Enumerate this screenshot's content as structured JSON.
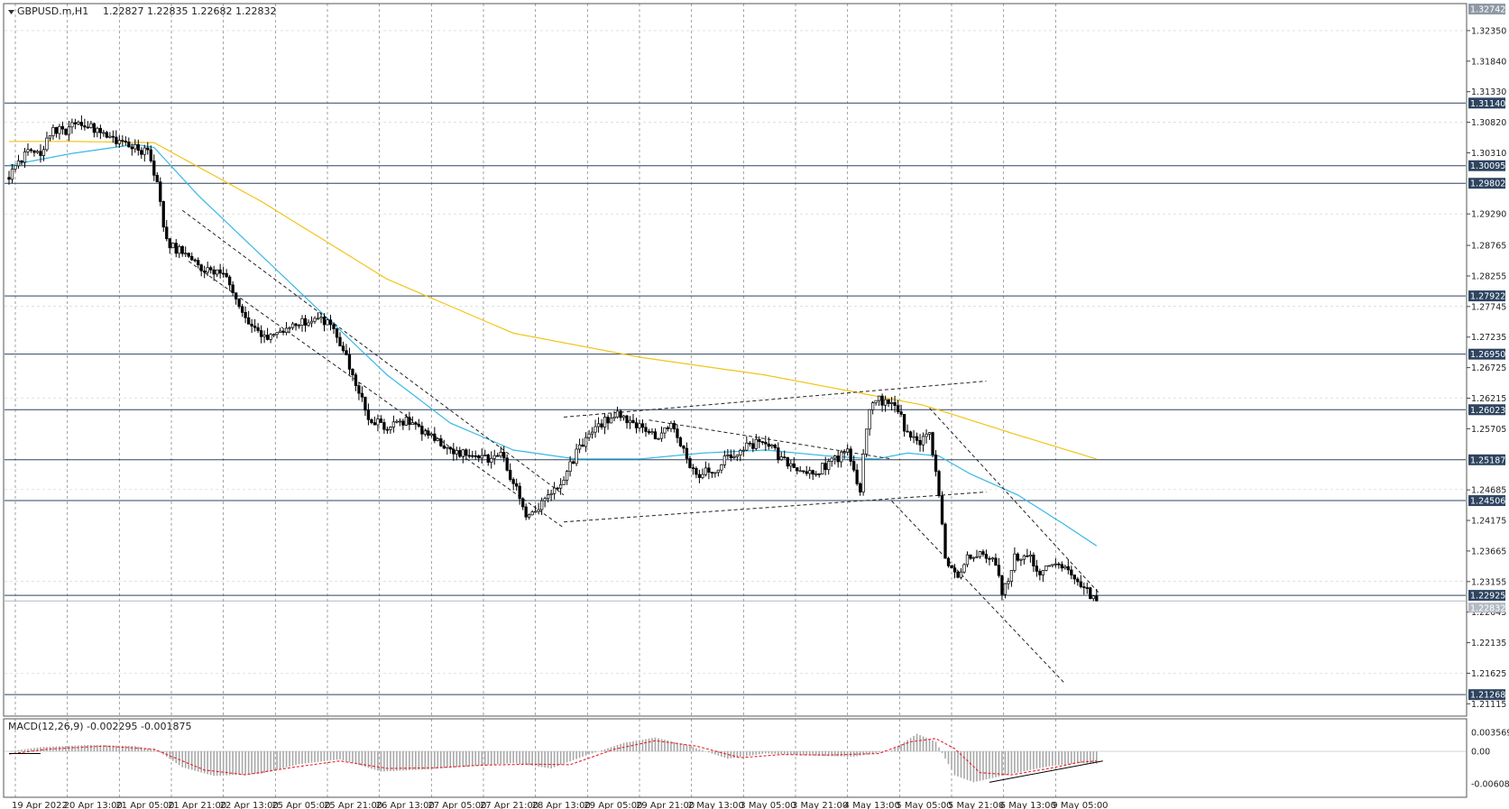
{
  "header": {
    "symbol": "GBPUSD.m,H1",
    "ohlc": "1.22827 1.22835 1.22682 1.22832"
  },
  "macd": {
    "label": "MACD(12,26,9) -0.002295 -0.001875",
    "axis_labels": [
      "0.003569",
      "0.00",
      "-0.00608"
    ]
  },
  "colors": {
    "bull": "#ffffff",
    "bear": "#000000",
    "ma_fast": "#36b8e6",
    "ma_slow": "#f2c418",
    "hline": "#2e4460",
    "grid": "#8a8a8a",
    "macd_hist": "#a8a8a8",
    "macd_signal": "#e8202a"
  },
  "chart_data": {
    "type": "candlestick",
    "symbol": "GBPUSD.m",
    "timeframe": "H1",
    "ylim": [
      1.2103,
      1.3277
    ],
    "y_ticks": [
      "1.32350",
      "1.31840",
      "1.31330",
      "1.30820",
      "1.30310",
      "1.29290",
      "1.28765",
      "1.28255",
      "1.27745",
      "1.27235",
      "1.26725",
      "1.26215",
      "1.25705",
      "1.24685",
      "1.24175",
      "1.23665",
      "1.23155",
      "1.22645",
      "1.22135",
      "1.21625",
      "1.21115"
    ],
    "top_label": "1.32742",
    "x_ticks": [
      "19 Apr 2022",
      "20 Apr 13:00",
      "21 Apr 05:00",
      "21 Apr 21:00",
      "22 Apr 13:00",
      "25 Apr 05:00",
      "25 Apr 21:00",
      "26 Apr 13:00",
      "27 Apr 05:00",
      "27 Apr 21:00",
      "28 Apr 13:00",
      "29 Apr 05:00",
      "29 Apr 21:00",
      "2 May 13:00",
      "3 May 05:00",
      "3 May 21:00",
      "4 May 13:00",
      "5 May 05:00",
      "5 May 21:00",
      "6 May 13:00",
      "9 May 05:00"
    ],
    "horizontal_levels": [
      "1.31140",
      "1.30095",
      "1.29802",
      "1.27922",
      "1.26950",
      "1.26023",
      "1.25187",
      "1.24506",
      "1.22925",
      "1.21268"
    ],
    "current_price": "1.22832",
    "price_path": [
      [
        0,
        1.299
      ],
      [
        6,
        1.304
      ],
      [
        10,
        1.303
      ],
      [
        14,
        1.307
      ],
      [
        18,
        1.3065
      ],
      [
        22,
        1.3085
      ],
      [
        26,
        1.3075
      ],
      [
        30,
        1.306
      ],
      [
        36,
        1.3045
      ],
      [
        40,
        1.304
      ],
      [
        44,
        1.303
      ],
      [
        47,
        1.298
      ],
      [
        50,
        1.288
      ],
      [
        56,
        1.286
      ],
      [
        60,
        1.284
      ],
      [
        66,
        1.2835
      ],
      [
        70,
        1.281
      ],
      [
        74,
        1.276
      ],
      [
        80,
        1.272
      ],
      [
        86,
        1.2735
      ],
      [
        92,
        1.2745
      ],
      [
        98,
        1.276
      ],
      [
        102,
        1.274
      ],
      [
        106,
        1.27
      ],
      [
        110,
        1.265
      ],
      [
        114,
        1.259
      ],
      [
        120,
        1.257
      ],
      [
        126,
        1.2585
      ],
      [
        132,
        1.2565
      ],
      [
        138,
        1.254
      ],
      [
        144,
        1.253
      ],
      [
        150,
        1.252
      ],
      [
        156,
        1.2525
      ],
      [
        160,
        1.248
      ],
      [
        164,
        1.243
      ],
      [
        168,
        1.244
      ],
      [
        172,
        1.246
      ],
      [
        176,
        1.249
      ],
      [
        180,
        1.253
      ],
      [
        186,
        1.257
      ],
      [
        192,
        1.2595
      ],
      [
        196,
        1.2585
      ],
      [
        200,
        1.2575
      ],
      [
        206,
        1.2555
      ],
      [
        210,
        1.2575
      ],
      [
        214,
        1.253
      ],
      [
        218,
        1.2495
      ],
      [
        224,
        1.2505
      ],
      [
        230,
        1.253
      ],
      [
        236,
        1.2545
      ],
      [
        240,
        1.255
      ],
      [
        244,
        1.2525
      ],
      [
        250,
        1.2505
      ],
      [
        254,
        1.2495
      ],
      [
        258,
        1.2505
      ],
      [
        262,
        1.252
      ],
      [
        266,
        1.253
      ],
      [
        270,
        1.247
      ],
      [
        272,
        1.2575
      ],
      [
        274,
        1.262
      ],
      [
        278,
        1.2615
      ],
      [
        282,
        1.2605
      ],
      [
        284,
        1.257
      ],
      [
        288,
        1.2545
      ],
      [
        292,
        1.256
      ],
      [
        295,
        1.246
      ],
      [
        297,
        1.235
      ],
      [
        301,
        1.233
      ],
      [
        305,
        1.236
      ],
      [
        309,
        1.2365
      ],
      [
        313,
        1.235
      ],
      [
        315,
        1.229
      ],
      [
        319,
        1.2355
      ],
      [
        323,
        1.236
      ],
      [
        327,
        1.233
      ],
      [
        331,
        1.2345
      ],
      [
        335,
        1.234
      ],
      [
        339,
        1.232
      ],
      [
        343,
        1.2295
      ],
      [
        345,
        1.2283
      ]
    ],
    "moving_averages": [
      {
        "points": [
          [
            0,
            1.301
          ],
          [
            20,
            1.303
          ],
          [
            40,
            1.3045
          ],
          [
            46,
            1.304
          ],
          [
            60,
            1.296
          ],
          [
            80,
            1.286
          ],
          [
            100,
            1.276
          ],
          [
            120,
            1.266
          ],
          [
            140,
            1.258
          ],
          [
            160,
            1.2535
          ],
          [
            180,
            1.252
          ],
          [
            200,
            1.252
          ],
          [
            220,
            1.253
          ],
          [
            240,
            1.2535
          ],
          [
            260,
            1.2525
          ],
          [
            275,
            1.252
          ],
          [
            285,
            1.253
          ],
          [
            295,
            1.2525
          ],
          [
            305,
            1.2495
          ],
          [
            320,
            1.246
          ],
          [
            335,
            1.241
          ],
          [
            345,
            1.2375
          ]
        ]
      },
      {
        "points": [
          [
            0,
            1.305
          ],
          [
            20,
            1.305
          ],
          [
            46,
            1.3048
          ],
          [
            80,
            1.295
          ],
          [
            120,
            1.282
          ],
          [
            160,
            1.273
          ],
          [
            200,
            1.269
          ],
          [
            240,
            1.266
          ],
          [
            270,
            1.263
          ],
          [
            290,
            1.261
          ],
          [
            320,
            1.256
          ],
          [
            345,
            1.252
          ]
        ]
      }
    ],
    "trendlines": [
      {
        "from": [
          55,
          1.2935
        ],
        "to": [
          176,
          1.246
        ]
      },
      {
        "from": [
          57,
          1.285
        ],
        "to": [
          176,
          1.2405
        ]
      },
      {
        "from": [
          176,
          1.2415
        ],
        "to": [
          310,
          1.2465
        ]
      },
      {
        "from": [
          176,
          1.259
        ],
        "to": [
          310,
          1.265
        ]
      },
      {
        "from": [
          203,
          1.2585
        ],
        "to": [
          280,
          1.252
        ]
      },
      {
        "from": [
          280,
          1.245
        ],
        "to": [
          335,
          1.2145
        ]
      },
      {
        "from": [
          292,
          1.2605
        ],
        "to": [
          346,
          1.2295
        ]
      }
    ],
    "macd_series": {
      "ylim": [
        -0.00608,
        0.003569
      ],
      "histogram": [
        [
          0,
          0.0
        ],
        [
          10,
          0.0008
        ],
        [
          25,
          0.0012
        ],
        [
          40,
          0.001
        ],
        [
          47,
          0.0002
        ],
        [
          55,
          -0.003
        ],
        [
          65,
          -0.0046
        ],
        [
          80,
          -0.0042
        ],
        [
          92,
          -0.0024
        ],
        [
          105,
          -0.0015
        ],
        [
          118,
          -0.0038
        ],
        [
          132,
          -0.0034
        ],
        [
          146,
          -0.0028
        ],
        [
          160,
          -0.0022
        ],
        [
          172,
          -0.0032
        ],
        [
          182,
          -0.001
        ],
        [
          195,
          0.0016
        ],
        [
          205,
          0.0026
        ],
        [
          215,
          0.0012
        ],
        [
          228,
          -0.0014
        ],
        [
          240,
          -0.0004
        ],
        [
          255,
          -0.0008
        ],
        [
          268,
          -0.001
        ],
        [
          280,
          0.0002
        ],
        [
          288,
          0.0033
        ],
        [
          294,
          0.0018
        ],
        [
          300,
          -0.0045
        ],
        [
          306,
          -0.0058
        ],
        [
          318,
          -0.0042
        ],
        [
          330,
          -0.0028
        ],
        [
          340,
          -0.0022
        ],
        [
          345,
          -0.0023
        ]
      ],
      "signal": [
        [
          0,
          -0.0005
        ],
        [
          12,
          0.0004
        ],
        [
          30,
          0.001
        ],
        [
          46,
          0.0004
        ],
        [
          62,
          -0.0035
        ],
        [
          75,
          -0.0044
        ],
        [
          90,
          -0.003
        ],
        [
          105,
          -0.0018
        ],
        [
          120,
          -0.0032
        ],
        [
          135,
          -0.0031
        ],
        [
          150,
          -0.0026
        ],
        [
          165,
          -0.0024
        ],
        [
          178,
          -0.0025
        ],
        [
          192,
          0.0004
        ],
        [
          205,
          0.002
        ],
        [
          218,
          0.001
        ],
        [
          232,
          -0.0012
        ],
        [
          245,
          -0.0006
        ],
        [
          260,
          -0.0007
        ],
        [
          276,
          -0.0004
        ],
        [
          286,
          0.0018
        ],
        [
          294,
          0.0024
        ],
        [
          300,
          0.0005
        ],
        [
          308,
          -0.004
        ],
        [
          318,
          -0.0044
        ],
        [
          330,
          -0.0032
        ],
        [
          340,
          -0.002
        ],
        [
          345,
          -0.0018
        ]
      ]
    }
  }
}
